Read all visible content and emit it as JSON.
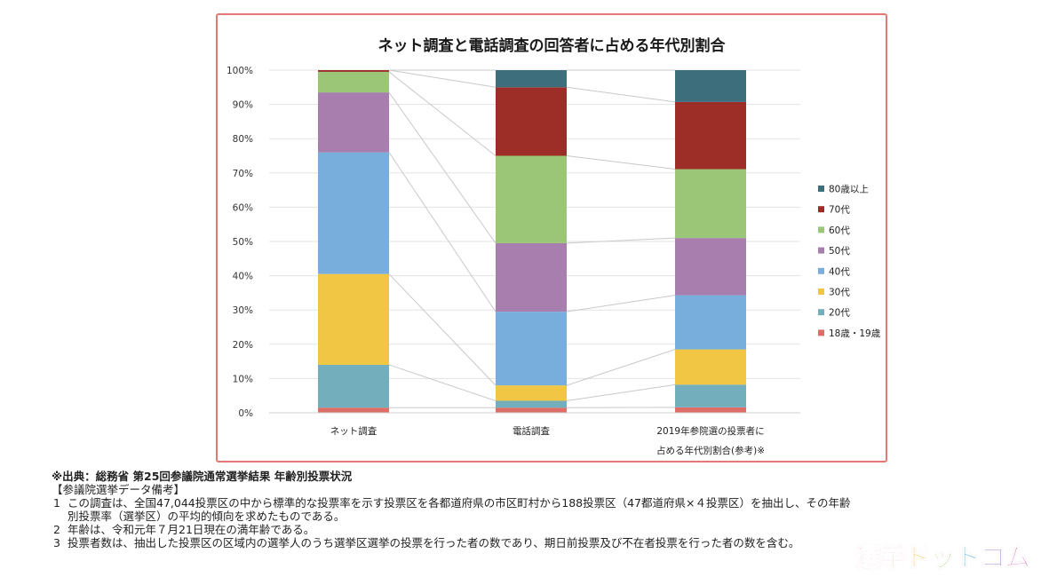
{
  "chart_data": {
    "type": "bar",
    "stacked": true,
    "normalized": true,
    "title": "ネット調査と電話調査の回答者に占める年代別割合",
    "categories": [
      "ネット調査",
      "電話調査",
      "2019年参院選の投票者に占める年代別割合(参考)※"
    ],
    "category_lines": [
      [
        "ネット調査"
      ],
      [
        "電話調査"
      ],
      [
        "2019年参院選の投票者に",
        "占める年代別割合(参考)※"
      ]
    ],
    "series": [
      {
        "name": "18歳・19歳",
        "color": "#dc6e67",
        "values": [
          1.5,
          1.5,
          1.6
        ]
      },
      {
        "name": "20代",
        "color": "#73aebc",
        "values": [
          12.5,
          2.0,
          6.6
        ]
      },
      {
        "name": "30代",
        "color": "#f1c644",
        "values": [
          26.5,
          4.5,
          10.3
        ]
      },
      {
        "name": "40代",
        "color": "#78aedc",
        "values": [
          35.5,
          21.5,
          15.8
        ]
      },
      {
        "name": "50代",
        "color": "#a77eae",
        "values": [
          17.5,
          20.0,
          16.7
        ]
      },
      {
        "name": "60代",
        "color": "#9bc677",
        "values": [
          6.0,
          25.5,
          20.1
        ]
      },
      {
        "name": "70代",
        "color": "#9c2e27",
        "values": [
          0.5,
          20.0,
          19.6
        ]
      },
      {
        "name": "80歳以上",
        "color": "#3d6e7c",
        "values": [
          0.0,
          5.0,
          9.3
        ]
      }
    ],
    "y_ticks": [
      "0%",
      "10%",
      "20%",
      "30%",
      "40%",
      "50%",
      "60%",
      "70%",
      "80%",
      "90%",
      "100%"
    ],
    "ylim": [
      0,
      100
    ],
    "legend_position": "right",
    "connector_lines": true
  },
  "notes": {
    "source": "※出典：総務省 第25回参議院通常選挙結果 年齢別投票状況",
    "heading": "【参議院選挙データ備考】",
    "items": [
      {
        "num": "1",
        "text": "この調査は、全国47,044投票区の中から標準的な投票率を示す投票区を各都道府県の市区町村から188投票区（47都道府県×４投票区）を抽出し、その年齢別投票率（選挙区）の平均的傾向を求めたものである。"
      },
      {
        "num": "2",
        "text": "年齢は、令和元年７月21日現在の満年齢である。"
      },
      {
        "num": "3",
        "text": "投票者数は、抽出した投票区の区域内の選挙人のうち選挙区選挙の投票を行った者の数であり、期日前投票及び不在者投票を行った者の数を含む。"
      }
    ]
  },
  "brand": {
    "logo_text": "選挙ドットコム",
    "colors": [
      "#e0314f",
      "#ee7a2e",
      "#f2b22a",
      "#6cbb45",
      "#2c97d6",
      "#6c55c4",
      "#d24aa8"
    ]
  }
}
